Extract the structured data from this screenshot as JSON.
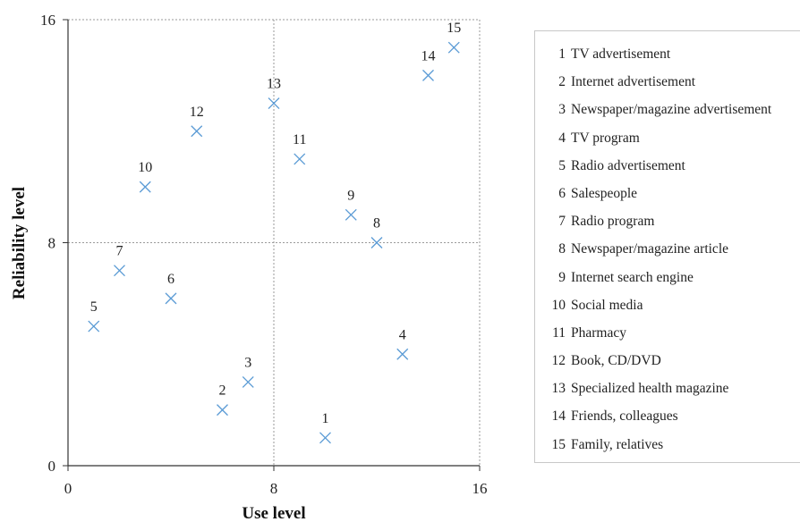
{
  "chart_data": {
    "type": "scatter",
    "xlabel": "Use level",
    "ylabel": "Reliability level",
    "xlim": [
      0,
      16
    ],
    "ylim": [
      0,
      16
    ],
    "xticks": [
      "0",
      "8",
      "16"
    ],
    "yticks": [
      "0",
      "8",
      "16"
    ],
    "grid": "dashed divider lines at x=8 and y=8",
    "marker": "x",
    "color": "#5b9bd5",
    "legend_position": "right",
    "points": [
      {
        "label": "1",
        "name": "TV advertisement",
        "x": 10,
        "y": 1
      },
      {
        "label": "2",
        "name": "Internet advertisement",
        "x": 6,
        "y": 2
      },
      {
        "label": "3",
        "name": "Newspaper/magazine advertisement",
        "x": 7,
        "y": 3
      },
      {
        "label": "4",
        "name": "TV program",
        "x": 13,
        "y": 4
      },
      {
        "label": "5",
        "name": "Radio advertisement",
        "x": 1,
        "y": 5
      },
      {
        "label": "6",
        "name": "Salespeople",
        "x": 4,
        "y": 6
      },
      {
        "label": "7",
        "name": "Radio program",
        "x": 2,
        "y": 7
      },
      {
        "label": "8",
        "name": "Newspaper/magazine article",
        "x": 12,
        "y": 8
      },
      {
        "label": "9",
        "name": "Internet search engine",
        "x": 11,
        "y": 9
      },
      {
        "label": "10",
        "name": "Social media",
        "x": 3,
        "y": 10
      },
      {
        "label": "11",
        "name": "Pharmacy",
        "x": 9,
        "y": 11
      },
      {
        "label": "12",
        "name": "Book, CD/DVD",
        "x": 5,
        "y": 12
      },
      {
        "label": "13",
        "name": "Specialized health magazine",
        "x": 8,
        "y": 13
      },
      {
        "label": "14",
        "name": "Friends, colleagues",
        "x": 14,
        "y": 14
      },
      {
        "label": "15",
        "name": "Family, relatives",
        "x": 15,
        "y": 15
      }
    ]
  }
}
